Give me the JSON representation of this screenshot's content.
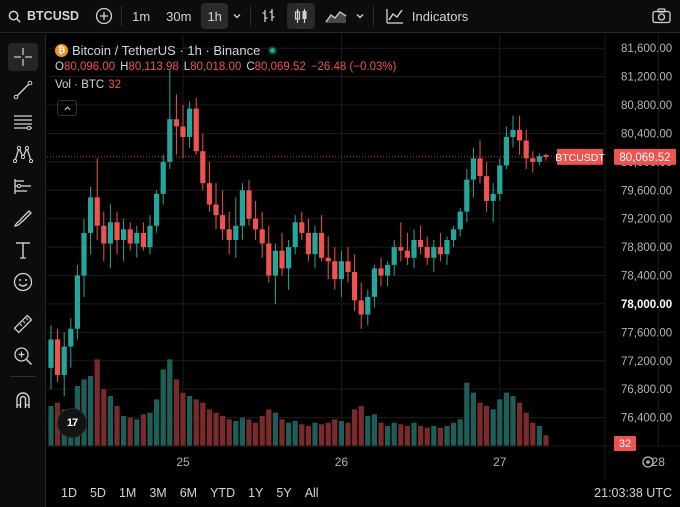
{
  "toolbar": {
    "symbol": "BTCUSD",
    "timeframes": [
      {
        "label": "1m",
        "active": false
      },
      {
        "label": "30m",
        "active": false
      },
      {
        "label": "1h",
        "active": true
      }
    ],
    "indicators_label": "Indicators"
  },
  "legend": {
    "coin_glyph": "₿",
    "title": "Bitcoin / TetherUS · 1h · Binance",
    "ohlc": [
      {
        "key": "O",
        "value": "80,096.00"
      },
      {
        "key": "H",
        "value": "80,113.98"
      },
      {
        "key": "L",
        "value": "80,018.00"
      },
      {
        "key": "C",
        "value": "80,069.52"
      }
    ],
    "change": "−26.48 (−0.03%)",
    "volume_label": "Vol · BTC",
    "volume_value": "32"
  },
  "tv_logo": "17",
  "bottom": {
    "ranges": [
      "1D",
      "5D",
      "1M",
      "3M",
      "6M",
      "YTD",
      "1Y",
      "5Y",
      "All"
    ],
    "clock": "21:03:38 UTC"
  },
  "colors": {
    "up": "#26a69a",
    "down": "#ef5350",
    "up_volume": "#1d5f58",
    "down_volume": "#7a2a2a",
    "grid": "#1c1c1c"
  },
  "chart_data": {
    "type": "candlestick",
    "ylim": [
      76000,
      81800
    ],
    "y_ticks": [
      81600,
      81200,
      80800,
      80400,
      80000,
      79600,
      79200,
      78800,
      78400,
      78000,
      77600,
      77200,
      76800,
      76400
    ],
    "y_tick_labels": [
      "81,600.00",
      "81,200.00",
      "80,800.00",
      "80,400.00",
      "80,000.00",
      "79,600.00",
      "79,200.00",
      "78,800.00",
      "78,400.00",
      "78,000.00",
      "77,600.00",
      "77,200.00",
      "76,800.00",
      "76,400.00"
    ],
    "bold_tick": "78,000.00",
    "x_labels": [
      {
        "label": "25",
        "index": 20
      },
      {
        "label": "26",
        "index": 44
      },
      {
        "label": "27",
        "index": 68
      },
      {
        "label": "28",
        "index": 92
      }
    ],
    "last_price_label": "80,069.52",
    "last_price_symbol": "BTCUSDT",
    "last_price": 80069.52,
    "last_volume": "32",
    "volume_max": 300,
    "candles": [
      [
        77100,
        77700,
        76800,
        77500,
        120
      ],
      [
        77500,
        77650,
        76900,
        77000,
        130
      ],
      [
        77000,
        77600,
        76700,
        77400,
        110
      ],
      [
        77400,
        77800,
        77100,
        77650,
        95
      ],
      [
        77650,
        78550,
        77500,
        78400,
        180
      ],
      [
        78400,
        79200,
        78100,
        79000,
        200
      ],
      [
        79000,
        79650,
        78700,
        79500,
        210
      ],
      [
        79500,
        80050,
        78900,
        79100,
        260
      ],
      [
        79100,
        79300,
        78600,
        78850,
        170
      ],
      [
        78850,
        79400,
        78500,
        79150,
        150
      ],
      [
        79150,
        79300,
        78700,
        78900,
        120
      ],
      [
        78900,
        79200,
        78600,
        79050,
        90
      ],
      [
        79050,
        79150,
        78750,
        78850,
        85
      ],
      [
        78850,
        79100,
        78650,
        79000,
        80
      ],
      [
        79000,
        79150,
        78750,
        78800,
        95
      ],
      [
        78800,
        79250,
        78700,
        79100,
        100
      ],
      [
        79100,
        79600,
        79000,
        79550,
        140
      ],
      [
        79550,
        80100,
        79400,
        80000,
        230
      ],
      [
        80000,
        81300,
        79900,
        80600,
        260
      ],
      [
        80600,
        80950,
        80100,
        80500,
        200
      ],
      [
        80500,
        80800,
        80050,
        80350,
        160
      ],
      [
        80350,
        80850,
        80200,
        80750,
        150
      ],
      [
        80750,
        80900,
        80100,
        80150,
        140
      ],
      [
        80150,
        80400,
        79600,
        79700,
        130
      ],
      [
        79700,
        80000,
        79300,
        79400,
        110
      ],
      [
        79400,
        79700,
        79050,
        79250,
        100
      ],
      [
        79250,
        79600,
        78900,
        79050,
        90
      ],
      [
        79050,
        79300,
        78700,
        78900,
        80
      ],
      [
        78900,
        79500,
        78650,
        79100,
        75
      ],
      [
        79100,
        79700,
        78900,
        79600,
        85
      ],
      [
        79600,
        79750,
        79100,
        79200,
        80
      ],
      [
        79200,
        79450,
        78900,
        79050,
        70
      ],
      [
        79050,
        79300,
        78650,
        78850,
        90
      ],
      [
        78850,
        79100,
        78300,
        78400,
        110
      ],
      [
        78400,
        78850,
        78000,
        78750,
        100
      ],
      [
        78750,
        79000,
        78400,
        78500,
        80
      ],
      [
        78500,
        78900,
        78200,
        78800,
        70
      ],
      [
        78800,
        79250,
        78700,
        79150,
        75
      ],
      [
        79150,
        79300,
        78900,
        79000,
        65
      ],
      [
        79000,
        79200,
        78600,
        78700,
        60
      ],
      [
        78700,
        79100,
        78500,
        79000,
        70
      ],
      [
        79000,
        79250,
        78600,
        78650,
        65
      ],
      [
        78650,
        78950,
        78350,
        78600,
        70
      ],
      [
        78600,
        78800,
        78200,
        78350,
        80
      ],
      [
        78350,
        78750,
        78100,
        78600,
        75
      ],
      [
        78600,
        78800,
        78300,
        78450,
        70
      ],
      [
        78450,
        78700,
        77900,
        78050,
        110
      ],
      [
        78050,
        78300,
        77650,
        77850,
        120
      ],
      [
        77850,
        78200,
        77700,
        78100,
        90
      ],
      [
        78100,
        78550,
        77950,
        78500,
        95
      ],
      [
        78500,
        78650,
        78250,
        78400,
        70
      ],
      [
        78400,
        78600,
        78250,
        78550,
        60
      ],
      [
        78550,
        78900,
        78400,
        78800,
        70
      ],
      [
        78800,
        79150,
        78600,
        78750,
        65
      ],
      [
        78750,
        79000,
        78550,
        78650,
        60
      ],
      [
        78650,
        79050,
        78500,
        78900,
        70
      ],
      [
        78900,
        79100,
        78700,
        78800,
        60
      ],
      [
        78800,
        78950,
        78550,
        78650,
        55
      ],
      [
        78650,
        78900,
        78450,
        78800,
        60
      ],
      [
        78800,
        79000,
        78600,
        78700,
        55
      ],
      [
        78700,
        78950,
        78550,
        78900,
        60
      ],
      [
        78900,
        79100,
        78800,
        79050,
        70
      ],
      [
        79050,
        79350,
        78950,
        79300,
        80
      ],
      [
        79300,
        79900,
        79150,
        79750,
        190
      ],
      [
        79750,
        80200,
        79500,
        80050,
        160
      ],
      [
        80050,
        80300,
        79700,
        79800,
        130
      ],
      [
        79800,
        80000,
        79300,
        79450,
        120
      ],
      [
        79450,
        79700,
        79150,
        79550,
        110
      ],
      [
        79550,
        80050,
        79450,
        79950,
        140
      ],
      [
        79950,
        80500,
        79900,
        80350,
        160
      ],
      [
        80350,
        80650,
        80200,
        80450,
        150
      ],
      [
        80450,
        80650,
        80100,
        80300,
        130
      ],
      [
        80300,
        80450,
        79900,
        80050,
        100
      ],
      [
        80050,
        80150,
        79850,
        80000,
        70
      ],
      [
        80000,
        80120,
        79950,
        80080,
        60
      ],
      [
        80096,
        80114,
        80018,
        80070,
        32
      ]
    ]
  }
}
